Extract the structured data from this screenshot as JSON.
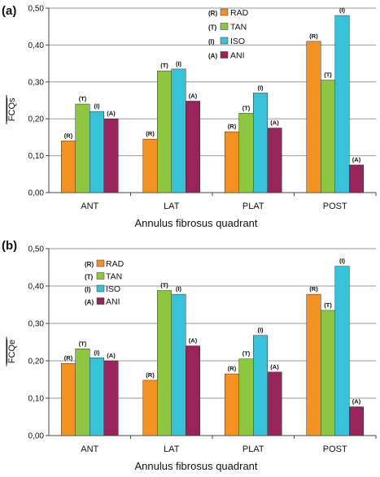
{
  "chart_data": [
    {
      "panel": "(a)",
      "type": "bar",
      "categories": [
        "ANT",
        "LAT",
        "PLAT",
        "POST"
      ],
      "xlabel": "Annulus fibrosus quadrant",
      "ylabel": "FCQs",
      "ylim": [
        0,
        0.5
      ],
      "yticks": [
        "0,00",
        "0,10",
        "0,20",
        "0,30",
        "0,40",
        "0,50"
      ],
      "grid": true,
      "legend_position": "top-center",
      "series": [
        {
          "name": "RAD",
          "code": "(R)",
          "color": "#f39220",
          "values": [
            0.14,
            0.145,
            0.165,
            0.41
          ]
        },
        {
          "name": "TAN",
          "code": "(T)",
          "color": "#8dc63f",
          "values": [
            0.24,
            0.33,
            0.215,
            0.305
          ]
        },
        {
          "name": "ISO",
          "code": "(I)",
          "color": "#36c2d9",
          "values": [
            0.22,
            0.335,
            0.27,
            0.48
          ]
        },
        {
          "name": "ANI",
          "code": "(A)",
          "color": "#98245a",
          "values": [
            0.2,
            0.248,
            0.175,
            0.075
          ]
        }
      ]
    },
    {
      "panel": "(b)",
      "type": "bar",
      "categories": [
        "ANT",
        "LAT",
        "PLAT",
        "POST"
      ],
      "xlabel": "Annulus fibrosus quadrant",
      "ylabel": "FCQe",
      "ylim": [
        0,
        0.5
      ],
      "yticks": [
        "0,00",
        "0,10",
        "0,20",
        "0,30",
        "0,40",
        "0,50"
      ],
      "grid": true,
      "legend_position": "top-left",
      "series": [
        {
          "name": "RAD",
          "code": "(R)",
          "color": "#f39220",
          "values": [
            0.193,
            0.148,
            0.165,
            0.378
          ]
        },
        {
          "name": "TAN",
          "code": "(T)",
          "color": "#8dc63f",
          "values": [
            0.232,
            0.388,
            0.205,
            0.335
          ]
        },
        {
          "name": "ISO",
          "code": "(I)",
          "color": "#36c2d9",
          "values": [
            0.208,
            0.378,
            0.268,
            0.453
          ]
        },
        {
          "name": "ANI",
          "code": "(A)",
          "color": "#98245a",
          "values": [
            0.2,
            0.24,
            0.17,
            0.077
          ]
        }
      ]
    }
  ]
}
